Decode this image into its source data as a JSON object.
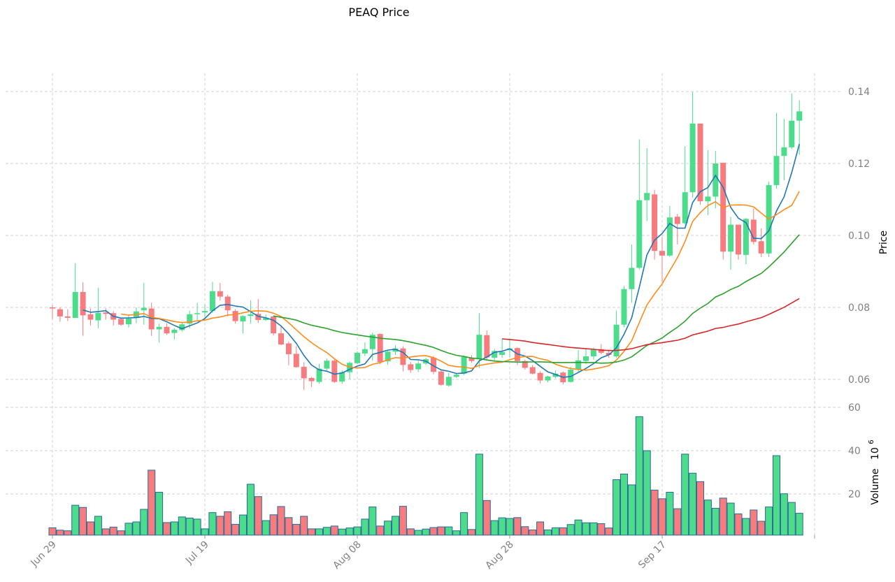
{
  "chart_data": {
    "type": "candlestick",
    "title": "PEAQ Price",
    "price_axis": {
      "label": "Price",
      "ticks": [
        "0.06",
        "0.08",
        "0.10",
        "0.12",
        "0.14"
      ],
      "ylim": [
        0.056,
        0.142
      ]
    },
    "volume_axis": {
      "label": "Volume",
      "multiplier": "10",
      "exponent": "6",
      "ticks": [
        "20",
        "40",
        "60"
      ],
      "ylim": [
        1,
        60
      ]
    },
    "x_ticks": [
      {
        "label": "Jun 29",
        "date": "06-29"
      },
      {
        "label": "Jul 19",
        "date": "07-19"
      },
      {
        "label": "Aug 08",
        "date": "08-08"
      },
      {
        "label": "Aug 28",
        "date": "08-28"
      },
      {
        "label": "Sep 17",
        "date": "09-17"
      }
    ],
    "grid": true,
    "colors": {
      "up": "#4cdc8c",
      "down": "#f77c80",
      "bar_edge": "#2b6a96"
    },
    "moving_averages": [
      {
        "window": 5,
        "color": "#1f77b4"
      },
      {
        "window": 10,
        "color": "#ff8c1a"
      },
      {
        "window": 30,
        "color": "#2ca02c"
      },
      {
        "window": 60,
        "color": "#d62728"
      }
    ],
    "dates": [
      "06-29",
      "06-30",
      "07-01",
      "07-02",
      "07-03",
      "07-04",
      "07-05",
      "07-06",
      "07-07",
      "07-08",
      "07-09",
      "07-10",
      "07-11",
      "07-12",
      "07-13",
      "07-14",
      "07-15",
      "07-16",
      "07-17",
      "07-18",
      "07-19",
      "07-20",
      "07-21",
      "07-22",
      "07-23",
      "07-24",
      "07-25",
      "07-26",
      "07-27",
      "07-28",
      "07-29",
      "07-30",
      "07-31",
      "08-01",
      "08-02",
      "08-03",
      "08-04",
      "08-05",
      "08-06",
      "08-07",
      "08-08",
      "08-09",
      "08-10",
      "08-11",
      "08-12",
      "08-13",
      "08-14",
      "08-15",
      "08-16",
      "08-17",
      "08-18",
      "08-19",
      "08-20",
      "08-21",
      "08-22",
      "08-23",
      "08-24",
      "08-25",
      "08-26",
      "08-27",
      "08-28",
      "08-29",
      "08-30",
      "08-31",
      "09-01",
      "09-02",
      "09-03",
      "09-04",
      "09-05",
      "09-06",
      "09-07",
      "09-08",
      "09-09",
      "09-10",
      "09-11",
      "09-12",
      "09-13",
      "09-14",
      "09-15",
      "09-16",
      "09-17",
      "09-18",
      "09-19",
      "09-20",
      "09-21",
      "09-22",
      "09-23",
      "09-24",
      "09-25",
      "09-26",
      "09-27",
      "09-28",
      "09-29",
      "09-30",
      "10-01",
      "10-02",
      "10-03",
      "10-04",
      "10-05"
    ],
    "ohlc": [
      [
        0.08,
        0.0806,
        0.0768,
        0.0797
      ],
      [
        0.0795,
        0.08,
        0.076,
        0.0775
      ],
      [
        0.0775,
        0.0795,
        0.0762,
        0.0771
      ],
      [
        0.0771,
        0.0923,
        0.0771,
        0.0843
      ],
      [
        0.0843,
        0.087,
        0.0721,
        0.0778
      ],
      [
        0.0781,
        0.0797,
        0.075,
        0.0766
      ],
      [
        0.0764,
        0.0855,
        0.0742,
        0.0785
      ],
      [
        0.0786,
        0.0797,
        0.0766,
        0.0782
      ],
      [
        0.0784,
        0.079,
        0.075,
        0.0766
      ],
      [
        0.0768,
        0.0771,
        0.0749,
        0.0752
      ],
      [
        0.0753,
        0.078,
        0.0744,
        0.0769
      ],
      [
        0.0771,
        0.08,
        0.0756,
        0.0789
      ],
      [
        0.0792,
        0.0868,
        0.0752,
        0.0799
      ],
      [
        0.0797,
        0.0813,
        0.0721,
        0.0739
      ],
      [
        0.0739,
        0.0755,
        0.0702,
        0.0746
      ],
      [
        0.0746,
        0.0755,
        0.0724,
        0.0728
      ],
      [
        0.0729,
        0.0742,
        0.0711,
        0.0738
      ],
      [
        0.0737,
        0.0757,
        0.0733,
        0.0753
      ],
      [
        0.0755,
        0.0791,
        0.0742,
        0.0781
      ],
      [
        0.0782,
        0.0813,
        0.0764,
        0.0784
      ],
      [
        0.0786,
        0.0808,
        0.077,
        0.079
      ],
      [
        0.079,
        0.0871,
        0.0785,
        0.0845
      ],
      [
        0.0845,
        0.0868,
        0.0819,
        0.083
      ],
      [
        0.083,
        0.0835,
        0.0775,
        0.0792
      ],
      [
        0.079,
        0.0795,
        0.0755,
        0.0762
      ],
      [
        0.0761,
        0.0778,
        0.0728,
        0.0776
      ],
      [
        0.0776,
        0.082,
        0.0755,
        0.0781
      ],
      [
        0.0782,
        0.0823,
        0.0757,
        0.0765
      ],
      [
        0.0765,
        0.078,
        0.0762,
        0.0771
      ],
      [
        0.0775,
        0.0777,
        0.0722,
        0.0728
      ],
      [
        0.0728,
        0.0746,
        0.0695,
        0.0697
      ],
      [
        0.07,
        0.0705,
        0.0639,
        0.067
      ],
      [
        0.0671,
        0.0692,
        0.0632,
        0.0634
      ],
      [
        0.0635,
        0.0648,
        0.0571,
        0.0603
      ],
      [
        0.0604,
        0.0607,
        0.0579,
        0.0595
      ],
      [
        0.0593,
        0.0643,
        0.0588,
        0.063
      ],
      [
        0.063,
        0.0658,
        0.0625,
        0.0652
      ],
      [
        0.0652,
        0.0656,
        0.059,
        0.0593
      ],
      [
        0.0594,
        0.0625,
        0.0588,
        0.0619
      ],
      [
        0.062,
        0.065,
        0.06,
        0.0646
      ],
      [
        0.0645,
        0.0678,
        0.0643,
        0.0674
      ],
      [
        0.0672,
        0.0703,
        0.0665,
        0.0684
      ],
      [
        0.0684,
        0.073,
        0.0652,
        0.0724
      ],
      [
        0.0726,
        0.0728,
        0.0642,
        0.0648
      ],
      [
        0.065,
        0.068,
        0.064,
        0.0677
      ],
      [
        0.0677,
        0.0695,
        0.0668,
        0.0686
      ],
      [
        0.0686,
        0.0692,
        0.0622,
        0.064
      ],
      [
        0.0642,
        0.0648,
        0.0618,
        0.0626
      ],
      [
        0.0628,
        0.0652,
        0.062,
        0.0644
      ],
      [
        0.0644,
        0.066,
        0.064,
        0.0656
      ],
      [
        0.066,
        0.0665,
        0.0614,
        0.0621
      ],
      [
        0.0622,
        0.0627,
        0.0582,
        0.0585
      ],
      [
        0.0583,
        0.0618,
        0.058,
        0.0607
      ],
      [
        0.0607,
        0.0617,
        0.0604,
        0.0613
      ],
      [
        0.0616,
        0.0667,
        0.0612,
        0.0662
      ],
      [
        0.066,
        0.0667,
        0.0646,
        0.0651
      ],
      [
        0.0657,
        0.0784,
        0.0632,
        0.0724
      ],
      [
        0.0723,
        0.0736,
        0.0652,
        0.0661
      ],
      [
        0.066,
        0.0684,
        0.0651,
        0.0679
      ],
      [
        0.0668,
        0.0713,
        0.066,
        0.0676
      ],
      [
        0.0681,
        0.071,
        0.0662,
        0.0686
      ],
      [
        0.0687,
        0.069,
        0.064,
        0.0651
      ],
      [
        0.0651,
        0.0655,
        0.0627,
        0.0632
      ],
      [
        0.0634,
        0.064,
        0.0614,
        0.0616
      ],
      [
        0.0618,
        0.0623,
        0.0589,
        0.0597
      ],
      [
        0.0597,
        0.061,
        0.0592,
        0.0608
      ],
      [
        0.0607,
        0.0625,
        0.0603,
        0.0616
      ],
      [
        0.0619,
        0.0622,
        0.0586,
        0.0592
      ],
      [
        0.0593,
        0.0635,
        0.0591,
        0.0627
      ],
      [
        0.0627,
        0.0682,
        0.062,
        0.0653
      ],
      [
        0.0651,
        0.0685,
        0.0642,
        0.0664
      ],
      [
        0.0664,
        0.0688,
        0.0655,
        0.0682
      ],
      [
        0.0684,
        0.0698,
        0.067,
        0.0674
      ],
      [
        0.0674,
        0.068,
        0.066,
        0.0668
      ],
      [
        0.0664,
        0.0791,
        0.066,
        0.0752
      ],
      [
        0.0752,
        0.086,
        0.0745,
        0.0851
      ],
      [
        0.0851,
        0.0975,
        0.0813,
        0.091
      ],
      [
        0.091,
        0.1267,
        0.0905,
        0.1098
      ],
      [
        0.1098,
        0.1243,
        0.104,
        0.1118
      ],
      [
        0.1114,
        0.1127,
        0.0933,
        0.0957
      ],
      [
        0.0957,
        0.0995,
        0.0871,
        0.0944
      ],
      [
        0.0944,
        0.1082,
        0.094,
        0.105
      ],
      [
        0.1052,
        0.106,
        0.0975,
        0.1032
      ],
      [
        0.1034,
        0.1248,
        0.103,
        0.112
      ],
      [
        0.112,
        0.1399,
        0.1105,
        0.1311
      ],
      [
        0.1311,
        0.1311,
        0.1085,
        0.1095
      ],
      [
        0.1095,
        0.1237,
        0.1056,
        0.1108
      ],
      [
        0.1108,
        0.1235,
        0.1075,
        0.12
      ],
      [
        0.1202,
        0.1202,
        0.0933,
        0.0955
      ],
      [
        0.0955,
        0.1052,
        0.0905,
        0.103
      ],
      [
        0.103,
        0.103,
        0.0933,
        0.0947
      ],
      [
        0.0946,
        0.1048,
        0.092,
        0.1046
      ],
      [
        0.1044,
        0.1075,
        0.0975,
        0.0982
      ],
      [
        0.0984,
        0.102,
        0.094,
        0.095
      ],
      [
        0.095,
        0.115,
        0.094,
        0.114
      ],
      [
        0.114,
        0.134,
        0.113,
        0.1221
      ],
      [
        0.1221,
        0.1324,
        0.1153,
        0.1245
      ],
      [
        0.1245,
        0.1395,
        0.124,
        0.1319
      ],
      [
        0.1319,
        0.1376,
        0.1224,
        0.1345
      ]
    ],
    "volume": [
      4.4,
      3.3,
      3.0,
      14.8,
      13.8,
      7.1,
      9.7,
      3.9,
      4.7,
      3.0,
      6.5,
      7.1,
      12.9,
      31.0,
      20.8,
      6.8,
      7.1,
      9.4,
      8.9,
      8.4,
      3.9,
      11.4,
      9.7,
      11.8,
      6.0,
      10.3,
      24.5,
      18.8,
      7.7,
      10.4,
      14.2,
      9.1,
      6.0,
      9.7,
      3.9,
      3.9,
      4.6,
      5.2,
      3.8,
      4.3,
      4.8,
      8.4,
      14.0,
      5.2,
      7.5,
      9.7,
      14.3,
      3.9,
      3.2,
      3.8,
      4.5,
      4.8,
      4.8,
      3.0,
      11.4,
      3.6,
      38.4,
      17.0,
      7.7,
      9.0,
      8.7,
      9.1,
      4.9,
      3.4,
      7.1,
      3.4,
      4.4,
      4.4,
      5.9,
      8.0,
      6.7,
      6.7,
      6.3,
      4.3,
      26.6,
      29.2,
      24.2,
      55.7,
      40.0,
      21.8,
      17.8,
      20.8,
      13.2,
      38.4,
      29.6,
      25.7,
      17.2,
      13.4,
      18.1,
      15.8,
      10.8,
      8.7,
      12.6,
      7.4,
      14.0,
      37.7,
      20.1,
      16.1,
      11.1
    ]
  }
}
